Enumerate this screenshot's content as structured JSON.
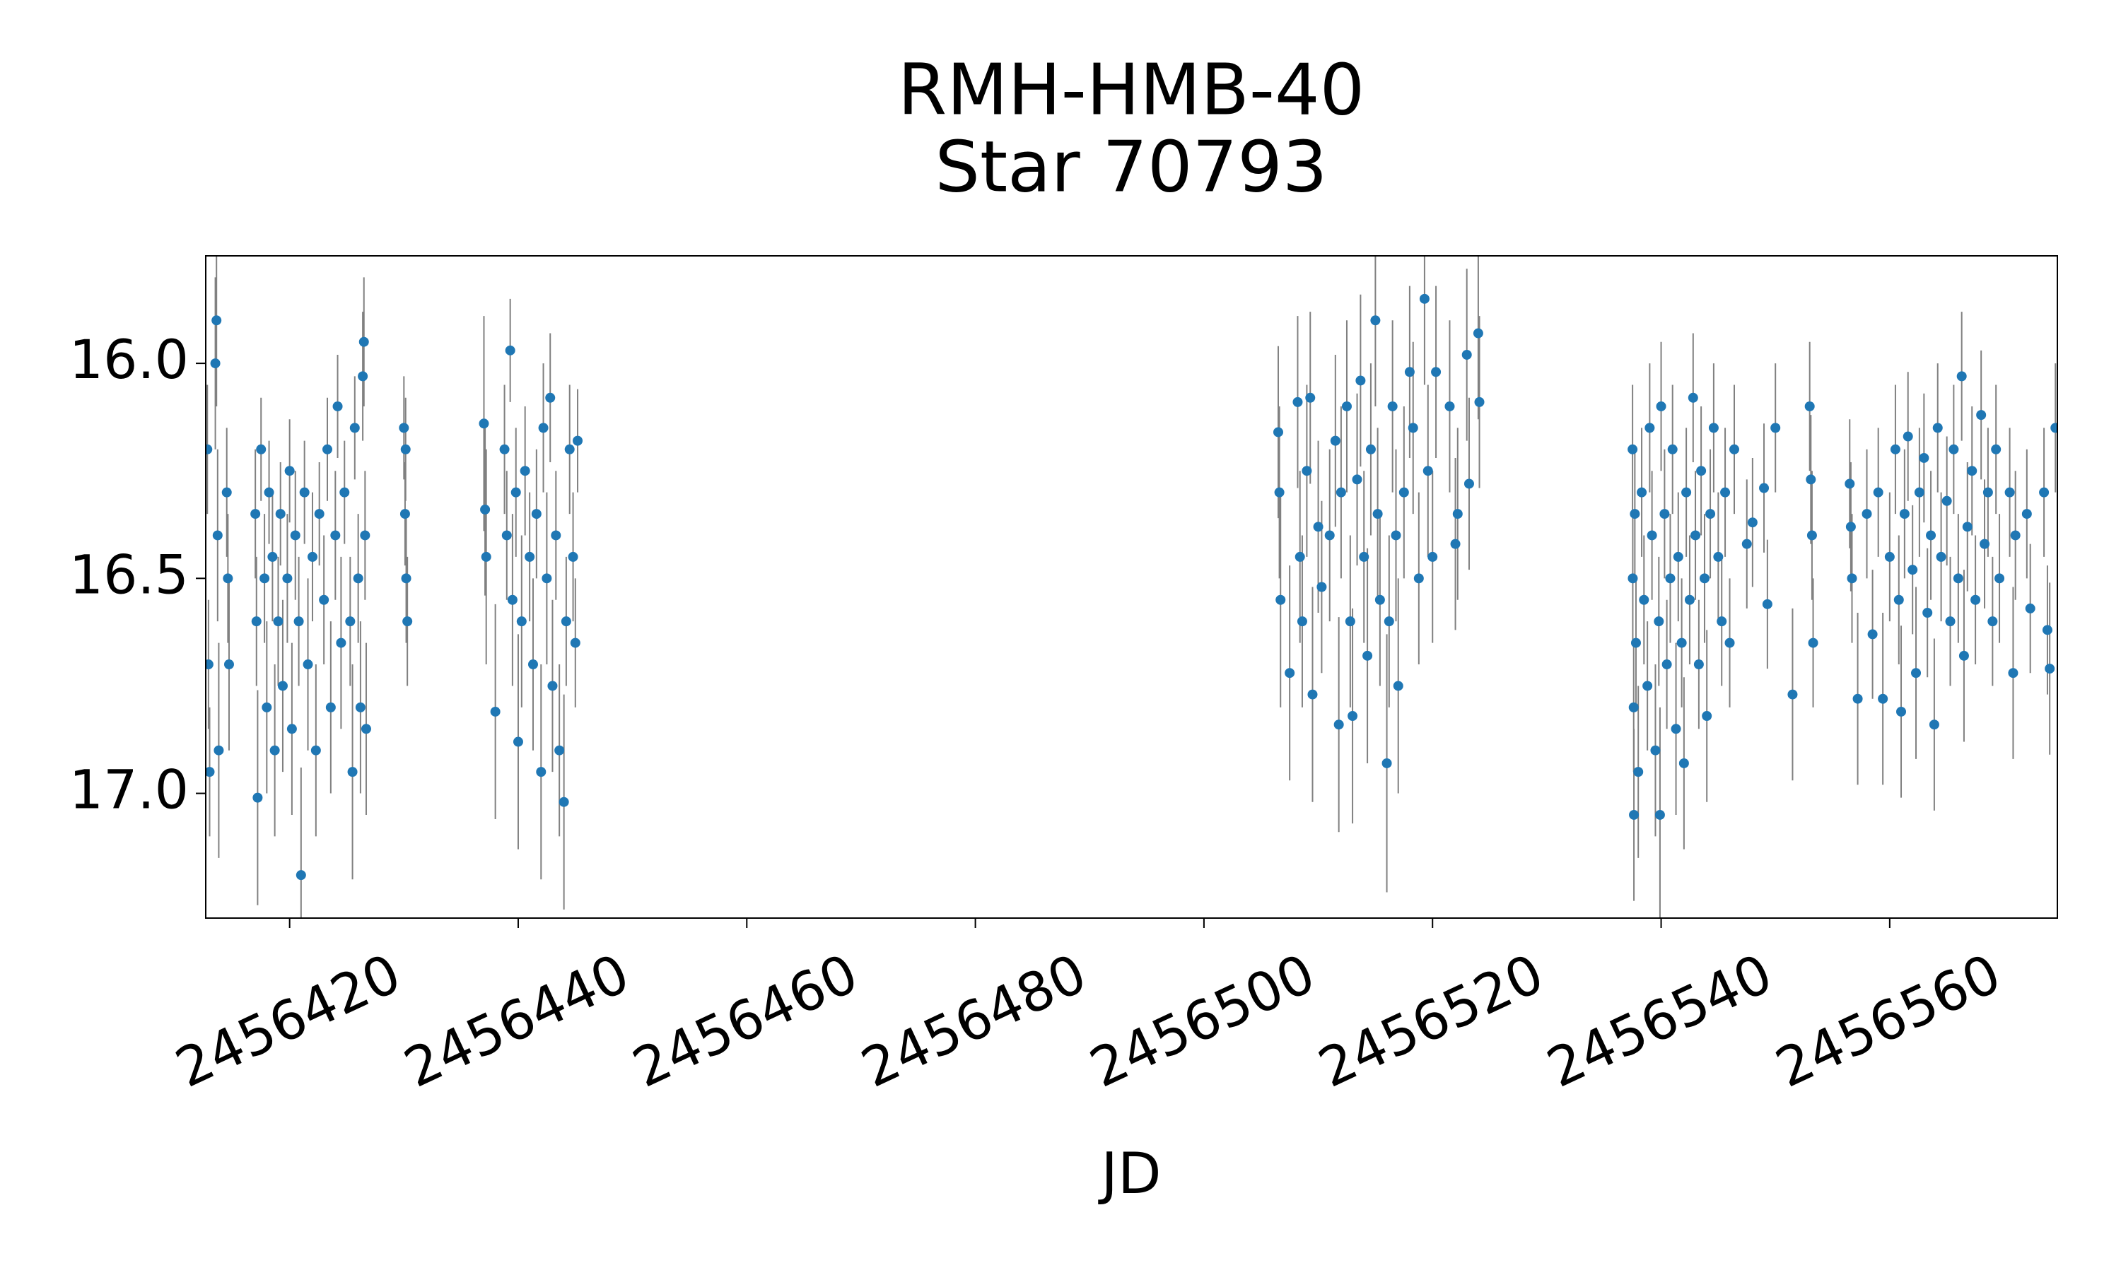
{
  "chart_data": {
    "type": "errorbar-scatter",
    "title": "RMH-HMB-40",
    "subtitle": "Star 70793",
    "x_label": "JD",
    "color": "#1f77b4",
    "error_color": "#808080",
    "xlim": [
      2456412.66,
      2456574.67
    ],
    "ylim": [
      17.29,
      15.75
    ],
    "xticks": [
      2456420,
      2456440,
      2456460,
      2456480,
      2456500,
      2456520,
      2456540,
      2456560
    ],
    "yticks": [
      {
        "value": 16,
        "label": "16.0"
      },
      16.5,
      {
        "value": 17,
        "label": "17.0"
      }
    ],
    "x": [
      2456412.8,
      2456412.9,
      2456413.0,
      2456413.5,
      2456413.6,
      2456413.7,
      2456413.8,
      2456414.5,
      2456414.6,
      2456414.7,
      2456417.0,
      2456417.1,
      2456417.2,
      2456417.5,
      2456417.8,
      2456418.0,
      2456418.2,
      2456418.5,
      2456418.7,
      2456419.0,
      2456419.2,
      2456419.4,
      2456419.8,
      2456420.0,
      2456420.2,
      2456420.5,
      2456420.8,
      2456421.0,
      2456421.3,
      2456421.6,
      2456422.0,
      2456422.3,
      2456422.6,
      2456423.0,
      2456423.3,
      2456423.6,
      2456424.0,
      2456424.2,
      2456424.5,
      2456424.8,
      2456425.3,
      2456425.5,
      2456425.7,
      2456426.0,
      2456426.2,
      2456426.4,
      2456426.5,
      2456426.6,
      2456426.7,
      2456430.0,
      2456430.1,
      2456430.2,
      2456430.3,
      2456430.15,
      2456437.0,
      2456437.1,
      2456437.2,
      2456438.0,
      2456438.8,
      2456439.0,
      2456439.3,
      2456439.5,
      2456439.8,
      2456440.0,
      2456440.3,
      2456440.6,
      2456441.0,
      2456441.3,
      2456441.6,
      2456442.0,
      2456442.2,
      2456442.5,
      2456442.8,
      2456443.0,
      2456443.3,
      2456443.6,
      2456444.0,
      2456444.2,
      2456444.5,
      2456444.8,
      2456445.0,
      2456445.2,
      2456506.5,
      2456506.6,
      2456506.7,
      2456507.5,
      2456508.2,
      2456508.4,
      2456508.6,
      2456509.0,
      2456509.3,
      2456509.5,
      2456510.0,
      2456510.3,
      2456511.0,
      2456511.5,
      2456511.8,
      2456512.0,
      2456512.5,
      2456512.8,
      2456513.0,
      2456513.4,
      2456513.7,
      2456514.0,
      2456514.3,
      2456514.6,
      2456515.0,
      2456515.2,
      2456515.4,
      2456516.0,
      2456516.2,
      2456516.5,
      2456516.8,
      2456517.0,
      2456517.5,
      2456518.0,
      2456518.3,
      2456518.8,
      2456519.3,
      2456519.6,
      2456520.0,
      2456520.3,
      2456521.5,
      2456522.0,
      2456522.2,
      2456523.0,
      2456523.2,
      2456524.0,
      2456524.1,
      2456537.5,
      2456537.52,
      2456537.6,
      2456537.62,
      2456537.7,
      2456537.8,
      2456538.0,
      2456538.3,
      2456538.5,
      2456538.8,
      2456539.0,
      2456539.2,
      2456539.5,
      2456539.8,
      2456539.9,
      2456540.0,
      2456540.3,
      2456540.5,
      2456540.8,
      2456541.0,
      2456541.3,
      2456541.5,
      2456541.8,
      2456542.0,
      2456542.2,
      2456542.5,
      2456542.8,
      2456543.0,
      2456543.3,
      2456543.5,
      2456543.8,
      2456544.0,
      2456544.3,
      2456544.6,
      2456545.0,
      2456545.3,
      2456545.6,
      2456546.0,
      2456546.4,
      2456547.5,
      2456548.0,
      2456549.0,
      2456549.3,
      2456550.0,
      2456551.5,
      2456553.0,
      2456553.1,
      2456553.2,
      2456553.3,
      2456556.5,
      2456556.6,
      2456556.7,
      2456557.2,
      2456558.0,
      2456558.5,
      2456559.0,
      2456559.4,
      2456560.0,
      2456560.5,
      2456560.8,
      2456561.0,
      2456561.3,
      2456561.6,
      2456562.0,
      2456562.3,
      2456562.6,
      2456563.0,
      2456563.3,
      2456563.6,
      2456563.9,
      2456564.2,
      2456564.5,
      2456565.0,
      2456565.3,
      2456565.6,
      2456566.0,
      2456566.3,
      2456566.5,
      2456566.8,
      2456567.2,
      2456567.5,
      2456568.0,
      2456568.3,
      2456568.6,
      2456569.0,
      2456569.3,
      2456569.6,
      2456570.5,
      2456570.8,
      2456571.0,
      2456572.0,
      2456572.3,
      2456573.5,
      2456573.8,
      2456574.0,
      2456574.5
    ],
    "values": [
      16.2,
      16.7,
      16.95,
      16.0,
      15.9,
      16.4,
      16.9,
      16.3,
      16.5,
      16.7,
      16.35,
      16.6,
      17.01,
      16.2,
      16.5,
      16.8,
      16.3,
      16.45,
      16.9,
      16.6,
      16.35,
      16.75,
      16.5,
      16.25,
      16.85,
      16.4,
      16.6,
      17.19,
      16.3,
      16.7,
      16.45,
      16.9,
      16.35,
      16.55,
      16.2,
      16.8,
      16.4,
      16.1,
      16.65,
      16.3,
      16.6,
      16.95,
      16.15,
      16.5,
      16.8,
      16.03,
      15.95,
      16.4,
      16.85,
      16.15,
      16.35,
      16.5,
      16.6,
      16.2,
      16.14,
      16.34,
      16.45,
      16.81,
      16.2,
      16.4,
      15.97,
      16.55,
      16.3,
      16.88,
      16.6,
      16.25,
      16.45,
      16.7,
      16.35,
      16.95,
      16.15,
      16.5,
      16.08,
      16.75,
      16.4,
      16.9,
      17.02,
      16.6,
      16.2,
      16.45,
      16.65,
      16.18,
      16.16,
      16.3,
      16.55,
      16.72,
      16.09,
      16.45,
      16.6,
      16.25,
      16.08,
      16.77,
      16.38,
      16.52,
      16.4,
      16.18,
      16.84,
      16.3,
      16.1,
      16.6,
      16.82,
      16.27,
      16.04,
      16.45,
      16.68,
      16.2,
      15.9,
      16.35,
      16.55,
      16.93,
      16.6,
      16.1,
      16.4,
      16.75,
      16.3,
      16.02,
      16.15,
      16.5,
      15.85,
      16.25,
      16.45,
      16.02,
      16.1,
      16.42,
      16.35,
      15.98,
      16.28,
      15.93,
      16.09,
      16.2,
      16.5,
      16.8,
      17.05,
      16.35,
      16.65,
      16.95,
      16.3,
      16.55,
      16.75,
      16.15,
      16.4,
      16.9,
      16.6,
      17.05,
      16.1,
      16.35,
      16.7,
      16.5,
      16.2,
      16.85,
      16.45,
      16.65,
      16.93,
      16.3,
      16.55,
      16.08,
      16.4,
      16.7,
      16.25,
      16.5,
      16.82,
      16.35,
      16.15,
      16.45,
      16.6,
      16.3,
      16.65,
      16.2,
      16.42,
      16.37,
      16.29,
      16.56,
      16.15,
      16.77,
      16.1,
      16.27,
      16.4,
      16.65,
      16.28,
      16.38,
      16.5,
      16.78,
      16.35,
      16.63,
      16.3,
      16.78,
      16.45,
      16.2,
      16.55,
      16.81,
      16.35,
      16.17,
      16.48,
      16.72,
      16.3,
      16.22,
      16.58,
      16.4,
      16.84,
      16.15,
      16.45,
      16.32,
      16.6,
      16.2,
      16.5,
      16.03,
      16.68,
      16.38,
      16.25,
      16.55,
      16.12,
      16.42,
      16.3,
      16.6,
      16.2,
      16.5,
      16.3,
      16.72,
      16.4,
      16.35,
      16.57,
      16.3,
      16.62,
      16.71,
      16.15
    ],
    "errors": [
      0.15,
      0.15,
      0.15,
      0.2,
      0.2,
      0.2,
      0.25,
      0.15,
      0.15,
      0.2,
      0.15,
      0.15,
      0.25,
      0.12,
      0.15,
      0.2,
      0.12,
      0.15,
      0.2,
      0.15,
      0.12,
      0.2,
      0.15,
      0.12,
      0.2,
      0.15,
      0.15,
      0.25,
      0.12,
      0.2,
      0.15,
      0.2,
      0.12,
      0.15,
      0.12,
      0.2,
      0.15,
      0.12,
      0.2,
      0.12,
      0.15,
      0.25,
      0.12,
      0.15,
      0.2,
      0.15,
      0.15,
      0.15,
      0.2,
      0.12,
      0.12,
      0.15,
      0.15,
      0.12,
      0.25,
      0.2,
      0.25,
      0.25,
      0.15,
      0.15,
      0.12,
      0.2,
      0.15,
      0.25,
      0.2,
      0.15,
      0.15,
      0.2,
      0.15,
      0.25,
      0.15,
      0.2,
      0.15,
      0.2,
      0.15,
      0.2,
      0.25,
      0.15,
      0.15,
      0.15,
      0.15,
      0.12,
      0.2,
      0.2,
      0.25,
      0.25,
      0.2,
      0.2,
      0.2,
      0.2,
      0.2,
      0.25,
      0.2,
      0.2,
      0.2,
      0.2,
      0.25,
      0.2,
      0.2,
      0.2,
      0.25,
      0.2,
      0.2,
      0.2,
      0.25,
      0.2,
      0.2,
      0.2,
      0.2,
      0.3,
      0.2,
      0.2,
      0.2,
      0.25,
      0.2,
      0.2,
      0.2,
      0.2,
      0.2,
      0.2,
      0.2,
      0.2,
      0.2,
      0.2,
      0.2,
      0.2,
      0.2,
      0.2,
      0.2,
      0.15,
      0.15,
      0.15,
      0.2,
      0.15,
      0.15,
      0.2,
      0.15,
      0.15,
      0.15,
      0.15,
      0.15,
      0.2,
      0.15,
      0.25,
      0.15,
      0.15,
      0.15,
      0.15,
      0.15,
      0.2,
      0.15,
      0.15,
      0.2,
      0.15,
      0.15,
      0.15,
      0.15,
      0.15,
      0.15,
      0.15,
      0.2,
      0.15,
      0.15,
      0.15,
      0.15,
      0.15,
      0.15,
      0.15,
      0.15,
      0.15,
      0.15,
      0.15,
      0.15,
      0.2,
      0.15,
      0.15,
      0.15,
      0.15,
      0.15,
      0.15,
      0.15,
      0.2,
      0.15,
      0.15,
      0.15,
      0.2,
      0.15,
      0.15,
      0.15,
      0.2,
      0.15,
      0.15,
      0.15,
      0.2,
      0.15,
      0.15,
      0.15,
      0.15,
      0.2,
      0.15,
      0.15,
      0.15,
      0.15,
      0.15,
      0.15,
      0.15,
      0.2,
      0.15,
      0.15,
      0.15,
      0.15,
      0.15,
      0.15,
      0.15,
      0.15,
      0.15,
      0.15,
      0.2,
      0.15,
      0.15,
      0.15,
      0.15,
      0.15,
      0.2,
      0.15
    ]
  }
}
